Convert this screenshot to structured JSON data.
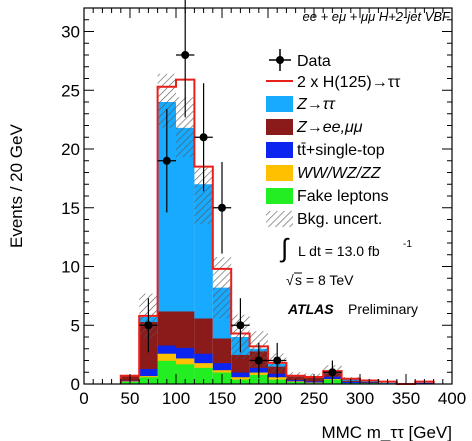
{
  "chart_data": {
    "type": "bar",
    "stacked": true,
    "ylabel": "Events / 20 GeV",
    "xlabel": "MMC m_ττ [GeV]",
    "xlim": [
      0,
      400
    ],
    "ylim": [
      0,
      32
    ],
    "bin_width": 20,
    "x_ticks": [
      "0",
      "50",
      "100",
      "150",
      "200",
      "250",
      "300",
      "350",
      "400"
    ],
    "y_ticks": [
      "0",
      "5",
      "10",
      "15",
      "20",
      "25",
      "30"
    ],
    "channel_label": "ee + eμ + μμ H+2-jet VBF",
    "bin_edges": [
      40,
      60,
      80,
      100,
      120,
      140,
      160,
      180,
      200,
      220,
      240,
      260,
      280,
      300,
      320,
      340,
      360,
      380
    ],
    "series": [
      {
        "name": "Fake leptons",
        "color": "#22ee22",
        "values": [
          0.2,
          0.6,
          2.0,
          1.7,
          1.4,
          1.0,
          0.4,
          0.8,
          0.4,
          0.2,
          0.1,
          0.4,
          0.1,
          0.1,
          0.0,
          0.0,
          0.0
        ]
      },
      {
        "name": "WW/WZ/ZZ",
        "color": "#ffc000",
        "values": [
          0.05,
          0.1,
          0.6,
          0.5,
          0.4,
          0.2,
          0.2,
          0.2,
          0.2,
          0.05,
          0.05,
          0.05,
          0.0,
          0.0,
          0.0,
          0.0,
          0.0
        ]
      },
      {
        "name": "tt̄+single-top",
        "color": "#0b24f0",
        "values": [
          0.05,
          0.6,
          0.7,
          0.9,
          0.8,
          0.6,
          0.4,
          0.4,
          0.3,
          0.1,
          0.1,
          0.2,
          0.1,
          0.05,
          0.0,
          0.0,
          0.1
        ]
      },
      {
        "name": "Z→ee,μμ",
        "color": "#8b1a1a",
        "values": [
          0.4,
          4.0,
          2.9,
          3.1,
          3.0,
          2.1,
          1.5,
          1.4,
          0.6,
          0.3,
          0.3,
          0.3,
          0.1,
          0.05,
          0.05,
          0.0,
          0.0
        ]
      },
      {
        "name": "Z→ττ",
        "color": "#18aaff",
        "values": [
          0.0,
          0.4,
          17.8,
          15.6,
          11.4,
          4.3,
          1.5,
          0.2,
          0.2,
          0.05,
          0.05,
          0.1,
          0.1,
          0.05,
          0.05,
          0.0,
          0.0
        ]
      }
    ],
    "signal": {
      "name": "2 x H(125)→ττ",
      "color": "#e8201a",
      "values": [
        0.7,
        5.8,
        25.3,
        25.9,
        18.5,
        9.8,
        4.3,
        3.2,
        1.8,
        0.7,
        0.6,
        1.1,
        0.45,
        0.3,
        0.2,
        0.0,
        0.2
      ]
    },
    "uncertainty": {
      "name": "Bkg. uncert.",
      "lower": [
        0.6,
        3.9,
        21.8,
        19.3,
        13.6,
        5.6,
        2.1,
        1.5,
        0.9,
        0.4,
        0.3,
        0.6,
        0.2,
        0.1,
        0.05,
        0.0,
        0.1
      ],
      "upper": [
        0.8,
        7.7,
        26.4,
        24.4,
        18.4,
        10.8,
        5.9,
        4.5,
        2.6,
        1.0,
        0.9,
        1.6,
        0.6,
        0.4,
        0.2,
        0.0,
        0.25
      ]
    },
    "data": {
      "name": "Data",
      "points": [
        {
          "x": 70,
          "y": 5,
          "err": 2.3
        },
        {
          "x": 90,
          "y": 19,
          "err": 4.4
        },
        {
          "x": 110,
          "y": 28,
          "err": 5.3
        },
        {
          "x": 130,
          "y": 21,
          "err": 4.6
        },
        {
          "x": 150,
          "y": 15,
          "err": 3.9
        },
        {
          "x": 170,
          "y": 5,
          "err": 2.3
        },
        {
          "x": 190,
          "y": 2,
          "err": 1.5
        },
        {
          "x": 210,
          "y": 2,
          "err": 1.5
        },
        {
          "x": 270,
          "y": 1,
          "err": 1.0
        }
      ]
    },
    "legend_position": "top-right",
    "legend": [
      "Data",
      "2 x H(125)→ττ",
      "Z→ττ",
      "Z→ee,μμ",
      "tt̄+single-top",
      "WW/WZ/ZZ",
      "Fake leptons",
      "Bkg. uncert."
    ],
    "lumi_label": "L dt = 13.0 fb",
    "lumi_unit_exp": "-1",
    "energy_label": "s = 8 TeV",
    "experiment": "ATLAS",
    "experiment_status": "Preliminary"
  }
}
